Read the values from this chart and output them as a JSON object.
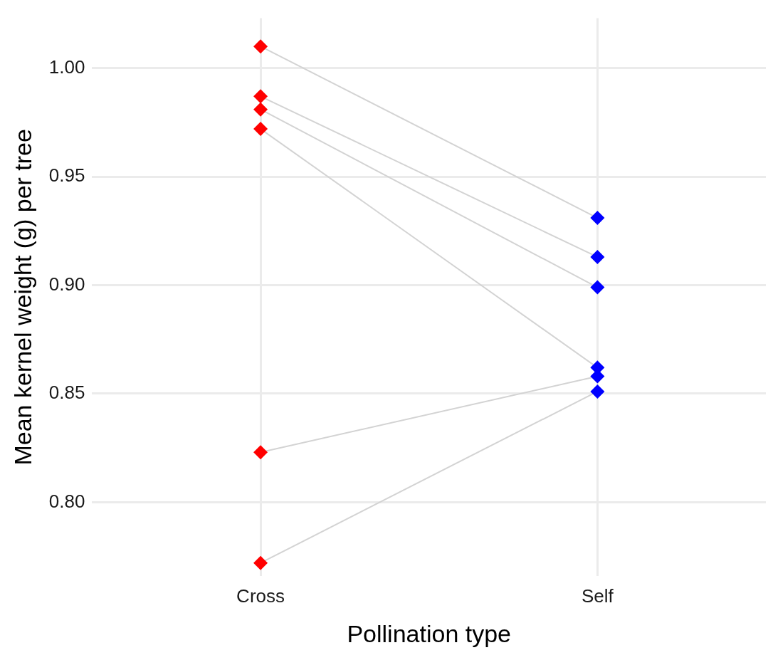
{
  "chart_data": {
    "type": "line",
    "xlabel": "Pollination type",
    "ylabel": "Mean kernel weight (g) per tree",
    "categories": [
      "Cross",
      "Self"
    ],
    "series": [
      {
        "color": "#d3d3d3",
        "colors": [
          "#ff0000",
          "#0000ff"
        ],
        "values": [
          1.01,
          0.931
        ]
      },
      {
        "color": "#d3d3d3",
        "colors": [
          "#ff0000",
          "#0000ff"
        ],
        "values": [
          0.987,
          0.913
        ]
      },
      {
        "color": "#d3d3d3",
        "colors": [
          "#ff0000",
          "#0000ff"
        ],
        "values": [
          0.981,
          0.899
        ]
      },
      {
        "color": "#d3d3d3",
        "colors": [
          "#ff0000",
          "#0000ff"
        ],
        "values": [
          0.972,
          0.862
        ]
      },
      {
        "color": "#d3d3d3",
        "colors": [
          "#ff0000",
          "#0000ff"
        ],
        "values": [
          0.823,
          0.858
        ]
      },
      {
        "color": "#d3d3d3",
        "colors": [
          "#ff0000",
          "#0000ff"
        ],
        "values": [
          0.772,
          0.851
        ]
      }
    ],
    "ylim": [
      0.766,
      1.023
    ],
    "yticks": [
      {
        "value": 0.8,
        "label": "0.80"
      },
      {
        "value": 0.85,
        "label": "0.85"
      },
      {
        "value": 0.9,
        "label": "0.90"
      },
      {
        "value": 0.95,
        "label": "0.95"
      },
      {
        "value": 1.0,
        "label": "1.00"
      }
    ],
    "grid": true,
    "legend": false,
    "marker": "diamond",
    "line_style": "solid"
  }
}
